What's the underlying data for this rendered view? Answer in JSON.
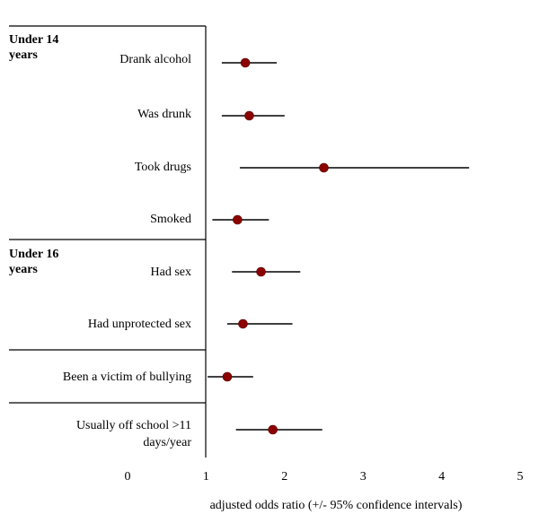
{
  "chart_data": {
    "type": "forest",
    "xlabel": "adjusted odds ratio (+/- 95% confidence intervals)",
    "xlim": [
      0,
      5
    ],
    "xticks": [
      "0",
      "1",
      "2",
      "3",
      "4",
      "5"
    ],
    "groups": [
      {
        "label_line1": "Under 14",
        "label_line2": "years"
      },
      {
        "label_line1": "Under 16",
        "label_line2": "years"
      }
    ],
    "rows": [
      {
        "label": "Drank alcohol",
        "or": 1.5,
        "ci_low": 1.2,
        "ci_high": 1.9
      },
      {
        "label": "Was drunk",
        "or": 1.55,
        "ci_low": 1.2,
        "ci_high": 2.0
      },
      {
        "label": "Took drugs",
        "or": 2.5,
        "ci_low": 1.43,
        "ci_high": 4.35
      },
      {
        "label": "Smoked",
        "or": 1.4,
        "ci_low": 1.08,
        "ci_high": 1.8
      },
      {
        "label": "Had sex",
        "or": 1.7,
        "ci_low": 1.33,
        "ci_high": 2.2
      },
      {
        "label": "Had unprotected sex",
        "or": 1.47,
        "ci_low": 1.27,
        "ci_high": 2.1
      },
      {
        "label": "Been a victim of bullying",
        "or": 1.27,
        "ci_low": 1.02,
        "ci_high": 1.6
      },
      {
        "label_line1": "Usually off  school >11",
        "label_line2": "days/year",
        "or": 1.85,
        "ci_low": 1.38,
        "ci_high": 2.48
      }
    ],
    "marker_color": "#8b0000",
    "grid": false
  }
}
